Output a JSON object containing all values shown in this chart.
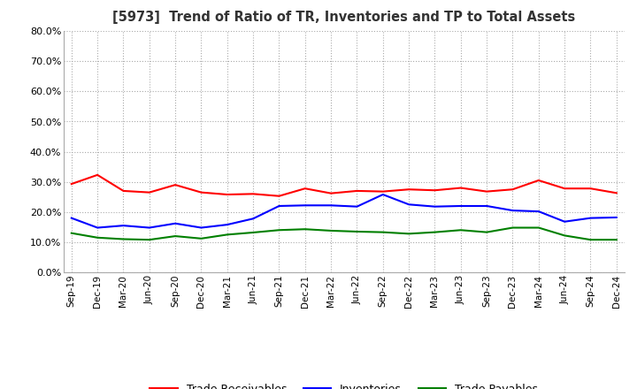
{
  "title": "[5973]  Trend of Ratio of TR, Inventories and TP to Total Assets",
  "x_labels": [
    "Sep-19",
    "Dec-19",
    "Mar-20",
    "Jun-20",
    "Sep-20",
    "Dec-20",
    "Mar-21",
    "Jun-21",
    "Sep-21",
    "Dec-21",
    "Mar-22",
    "Jun-22",
    "Sep-22",
    "Dec-22",
    "Mar-23",
    "Jun-23",
    "Sep-23",
    "Dec-23",
    "Mar-24",
    "Jun-24",
    "Sep-24",
    "Dec-24"
  ],
  "trade_receivables": [
    0.293,
    0.323,
    0.27,
    0.265,
    0.29,
    0.265,
    0.258,
    0.26,
    0.253,
    0.278,
    0.262,
    0.27,
    0.268,
    0.275,
    0.272,
    0.28,
    0.268,
    0.275,
    0.305,
    0.278,
    0.278,
    0.263
  ],
  "inventories": [
    0.18,
    0.148,
    0.155,
    0.148,
    0.162,
    0.148,
    0.158,
    0.178,
    0.22,
    0.222,
    0.222,
    0.218,
    0.258,
    0.225,
    0.218,
    0.22,
    0.22,
    0.205,
    0.202,
    0.168,
    0.18,
    0.182
  ],
  "trade_payables": [
    0.13,
    0.115,
    0.11,
    0.108,
    0.12,
    0.112,
    0.125,
    0.132,
    0.14,
    0.143,
    0.138,
    0.135,
    0.133,
    0.128,
    0.133,
    0.14,
    0.133,
    0.148,
    0.148,
    0.122,
    0.108,
    0.108
  ],
  "tr_color": "#ff0000",
  "inv_color": "#0000ff",
  "tp_color": "#008000",
  "ylim": [
    0.0,
    0.8
  ],
  "yticks": [
    0.0,
    0.1,
    0.2,
    0.3,
    0.4,
    0.5,
    0.6,
    0.7,
    0.8
  ],
  "background_color": "#ffffff",
  "grid_color": "#aaaaaa"
}
